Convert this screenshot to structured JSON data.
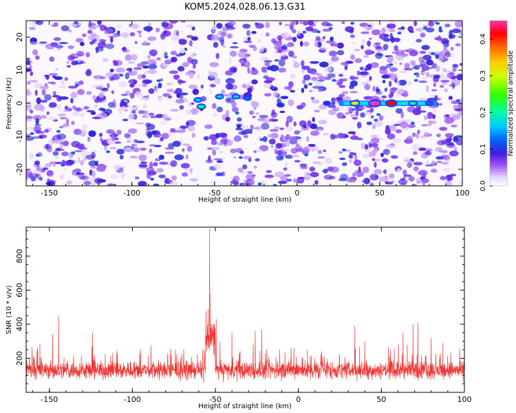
{
  "title": "KOM5.2024.028.06.13.G31",
  "chart_data": [
    {
      "type": "heatmap",
      "xlabel": "Height of straight line (km)",
      "ylabel": "Frequency (Hz)",
      "xlim": [
        -164,
        100
      ],
      "ylim": [
        -25,
        25
      ],
      "x_ticks": [
        -150,
        -100,
        -50,
        0,
        50,
        100
      ],
      "y_ticks": [
        -20,
        -10,
        0,
        10,
        20
      ],
      "colorbar": {
        "label": "Normalized spectral amplitude",
        "range": [
          0,
          0.45
        ],
        "ticks": [
          0.0,
          0.1,
          0.2,
          0.3,
          0.4
        ]
      },
      "features": [
        {
          "x": -58,
          "y": -1,
          "value": 0.2
        },
        {
          "x": -60,
          "y": 1,
          "value": 0.15
        },
        {
          "x": -47,
          "y": 2,
          "value": 0.15
        },
        {
          "x": -37,
          "y": 2,
          "value": 0.14
        },
        {
          "x": -30,
          "y": 1.5,
          "value": 0.1
        },
        {
          "x": -10,
          "y": -0.5,
          "value": 0.09
        },
        {
          "x": 18,
          "y": 0,
          "value": 0.09
        },
        {
          "x": 35,
          "y": 0,
          "value": 0.25
        },
        {
          "x": 47,
          "y": 0,
          "value": 0.45
        },
        {
          "x": 57,
          "y": 0,
          "value": 0.4
        },
        {
          "x": 70,
          "y": 0,
          "value": 0.2
        },
        {
          "x": 80,
          "y": 0,
          "value": 0.12
        }
      ],
      "grid": false,
      "legend": "none"
    },
    {
      "type": "line",
      "xlabel": "Height of straight line (km)",
      "ylabel": "SNR (10 * v/v)",
      "xlim": [
        -164,
        100
      ],
      "ylim": [
        0,
        970
      ],
      "x_ticks": [
        -150,
        -100,
        -50,
        0,
        50,
        100
      ],
      "y_ticks": [
        200,
        400,
        600,
        800
      ],
      "series": [
        {
          "color": "#ee3333",
          "baseline_mean": 130,
          "peaks": [
            {
              "x": -53.5,
              "y": 960
            },
            {
              "x": -53.2,
              "y": 580
            },
            {
              "x": -54.3,
              "y": 490
            },
            {
              "x": -49.5,
              "y": 430
            },
            {
              "x": -144.5,
              "y": 450
            },
            {
              "x": -124,
              "y": 350
            },
            {
              "x": -148,
              "y": 340
            },
            {
              "x": -40,
              "y": 350
            },
            {
              "x": -26,
              "y": 360
            },
            {
              "x": -22,
              "y": 370
            },
            {
              "x": 34,
              "y": 390
            },
            {
              "x": 40,
              "y": 300
            },
            {
              "x": 63,
              "y": 350
            },
            {
              "x": 69,
              "y": 400
            },
            {
              "x": 72,
              "y": 410
            },
            {
              "x": 80,
              "y": 320
            },
            {
              "x": 87,
              "y": 290
            }
          ]
        }
      ],
      "grid": false,
      "legend": "none"
    }
  ]
}
